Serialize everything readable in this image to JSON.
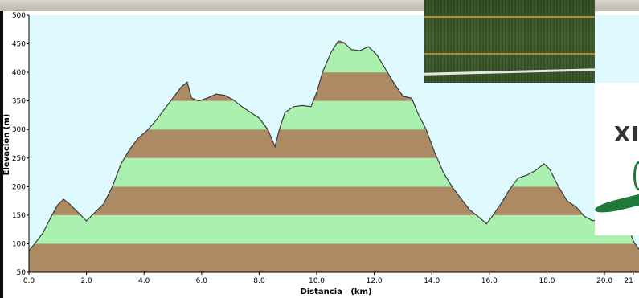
{
  "chart_data": {
    "type": "area",
    "title": "",
    "xlabel": "Distancia   (km)",
    "ylabel": "Elevación (m)",
    "xlim": [
      0,
      21.2
    ],
    "ylim": [
      50,
      500
    ],
    "x_ticks": [
      "0.0",
      "2.0",
      "4.0",
      "6.0",
      "8.0",
      "10.0",
      "12.0",
      "14.0",
      "16.0",
      "18.0",
      "20.0",
      "21"
    ],
    "y_ticks": [
      "50",
      "100",
      "150",
      "200",
      "250",
      "300",
      "350",
      "400",
      "450",
      "500"
    ],
    "grid": false,
    "legend": "none",
    "colors": {
      "background": "#dffaff",
      "band_brown": "#ac8a63",
      "band_green": "#aaf0ae",
      "profile_line": "#3a3a3a"
    },
    "series": [
      {
        "x": [
          0,
          0.2,
          0.5,
          0.8,
          1.0,
          1.2,
          1.4,
          1.7,
          2.0,
          2.3,
          2.6,
          2.9,
          3.2,
          3.5,
          3.8,
          4.1,
          4.4,
          4.7,
          5.0,
          5.3,
          5.5,
          5.65,
          5.9,
          6.2,
          6.5,
          6.8,
          7.1,
          7.4,
          7.7,
          8.0,
          8.3,
          8.55,
          8.7,
          8.9,
          9.2,
          9.5,
          9.8,
          10.0,
          10.2,
          10.5,
          10.75,
          10.95,
          11.2,
          11.5,
          11.8,
          12.1,
          12.4,
          12.7,
          13.0,
          13.3,
          13.5,
          13.8,
          14.1,
          14.4,
          14.7,
          15.0,
          15.3,
          15.6,
          15.9,
          16.1,
          16.4,
          16.7,
          17.0,
          17.3,
          17.6,
          17.9,
          18.1,
          18.4,
          18.7,
          19.0,
          19.3,
          19.6,
          19.9,
          20.2,
          20.5,
          20.8,
          21.0,
          21.2
        ],
        "values": [
          88,
          100,
          120,
          150,
          168,
          178,
          170,
          155,
          140,
          155,
          170,
          200,
          240,
          265,
          285,
          298,
          315,
          335,
          355,
          375,
          383,
          355,
          350,
          355,
          362,
          360,
          352,
          340,
          330,
          320,
          300,
          270,
          300,
          330,
          340,
          342,
          340,
          365,
          400,
          435,
          455,
          452,
          440,
          438,
          445,
          430,
          405,
          380,
          358,
          355,
          330,
          300,
          260,
          225,
          200,
          180,
          160,
          148,
          135,
          148,
          170,
          195,
          215,
          220,
          228,
          240,
          230,
          200,
          175,
          165,
          148,
          140,
          145,
          165,
          155,
          135,
          105,
          90
        ]
      }
    ]
  }
}
